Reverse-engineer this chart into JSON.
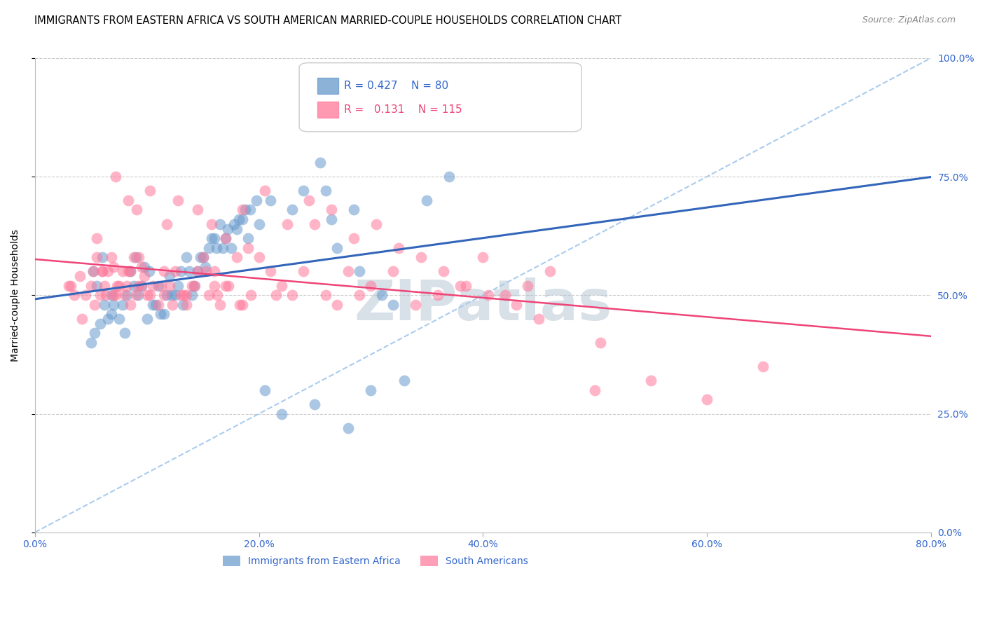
{
  "title": "IMMIGRANTS FROM EASTERN AFRICA VS SOUTH AMERICAN MARRIED-COUPLE HOUSEHOLDS CORRELATION CHART",
  "source": "Source: ZipAtlas.com",
  "ylabel": "Married-couple Households",
  "xlabel_vals": [
    0,
    20,
    40,
    60,
    80
  ],
  "ylabel_vals": [
    0,
    25,
    50,
    75,
    100
  ],
  "xlim": [
    0,
    80
  ],
  "ylim": [
    0,
    100
  ],
  "blue_R": 0.427,
  "blue_N": 80,
  "pink_R": 0.131,
  "pink_N": 115,
  "blue_color": "#6699CC",
  "pink_color": "#FF7799",
  "trend_blue_color": "#3366BB",
  "trend_pink_color": "#EE4477",
  "dashed_color": "#AACCEE",
  "watermark_color": "#AABBCC",
  "tick_label_color": "#3366CC",
  "grid_color": "#CCCCCC",
  "legend_blue_label": "Immigrants from Eastern Africa",
  "legend_pink_label": "South Americans",
  "blue_scatter_x": [
    5.2,
    5.5,
    6.0,
    6.2,
    6.8,
    7.5,
    8.0,
    8.5,
    9.0,
    9.2,
    10.0,
    10.5,
    11.0,
    11.5,
    12.0,
    12.5,
    13.0,
    13.5,
    14.0,
    14.5,
    15.0,
    15.5,
    16.0,
    16.5,
    17.0,
    17.5,
    18.0,
    18.5,
    19.0,
    5.0,
    5.3,
    6.5,
    7.0,
    8.2,
    9.5,
    10.2,
    11.2,
    12.2,
    13.2,
    14.2,
    15.2,
    16.2,
    17.2,
    18.2,
    19.2,
    5.8,
    6.8,
    7.8,
    8.8,
    9.8,
    10.8,
    11.8,
    12.8,
    13.8,
    14.8,
    15.8,
    16.8,
    17.8,
    18.8,
    19.8,
    20.5,
    22.0,
    25.0,
    28.0,
    30.0,
    33.0,
    35.0,
    37.0,
    25.5,
    26.0,
    28.5,
    20.0,
    21.0,
    23.0,
    24.0,
    26.5,
    27.0,
    29.0,
    31.0,
    32.0
  ],
  "blue_scatter_y": [
    55,
    52,
    58,
    48,
    50,
    45,
    42,
    55,
    58,
    50,
    45,
    48,
    52,
    46,
    54,
    50,
    55,
    58,
    50,
    55,
    58,
    60,
    62,
    65,
    62,
    60,
    64,
    66,
    62,
    40,
    42,
    45,
    48,
    50,
    52,
    55,
    46,
    50,
    48,
    52,
    56,
    60,
    64,
    66,
    68,
    44,
    46,
    48,
    52,
    56,
    48,
    50,
    52,
    55,
    58,
    62,
    60,
    65,
    68,
    70,
    30,
    25,
    27,
    22,
    30,
    32,
    70,
    75,
    78,
    72,
    68,
    65,
    70,
    68,
    72,
    66,
    60,
    55,
    50,
    48
  ],
  "pink_scatter_x": [
    3.0,
    3.5,
    4.0,
    4.5,
    5.0,
    5.2,
    5.5,
    5.8,
    6.0,
    6.2,
    6.5,
    6.8,
    7.0,
    7.2,
    7.5,
    7.8,
    8.0,
    8.2,
    8.5,
    8.8,
    9.0,
    9.2,
    9.5,
    9.8,
    10.0,
    10.5,
    11.0,
    11.5,
    12.0,
    12.5,
    13.0,
    13.5,
    14.0,
    14.5,
    15.0,
    15.5,
    16.0,
    16.5,
    17.0,
    18.0,
    19.0,
    20.0,
    21.0,
    22.0,
    23.0,
    24.0,
    25.0,
    26.0,
    27.0,
    28.0,
    29.0,
    30.0,
    32.0,
    34.0,
    36.0,
    38.0,
    40.0,
    42.0,
    44.0,
    46.0,
    50.0,
    55.0,
    60.0,
    65.0,
    7.2,
    8.3,
    9.1,
    10.3,
    11.8,
    12.8,
    14.5,
    15.8,
    17.0,
    18.5,
    20.5,
    22.5,
    24.5,
    26.5,
    28.5,
    30.5,
    32.5,
    34.5,
    36.5,
    38.5,
    40.5,
    43.0,
    45.0,
    5.5,
    6.0,
    7.0,
    8.5,
    9.5,
    11.5,
    13.5,
    16.0,
    18.5,
    21.5,
    3.2,
    4.2,
    5.3,
    6.3,
    7.3,
    8.3,
    9.3,
    10.3,
    11.3,
    12.3,
    13.3,
    14.3,
    15.3,
    16.3,
    17.3,
    18.3,
    19.3,
    50.5
  ],
  "pink_scatter_y": [
    52,
    50,
    54,
    50,
    52,
    55,
    58,
    50,
    55,
    52,
    55,
    58,
    56,
    50,
    52,
    55,
    50,
    52,
    55,
    58,
    50,
    52,
    56,
    54,
    50,
    52,
    48,
    50,
    52,
    55,
    50,
    48,
    52,
    55,
    58,
    50,
    55,
    48,
    52,
    58,
    60,
    58,
    55,
    52,
    50,
    55,
    65,
    50,
    48,
    55,
    50,
    52,
    55,
    48,
    50,
    52,
    58,
    50,
    52,
    55,
    30,
    32,
    28,
    35,
    75,
    70,
    68,
    72,
    65,
    70,
    68,
    65,
    62,
    68,
    72,
    65,
    70,
    68,
    62,
    65,
    60,
    58,
    55,
    52,
    50,
    48,
    45,
    62,
    55,
    50,
    48,
    52,
    55,
    50,
    52,
    48,
    50,
    52,
    45,
    48,
    50,
    52,
    55,
    58,
    50,
    52,
    48,
    50,
    52,
    55,
    50,
    52,
    48,
    50,
    40
  ]
}
